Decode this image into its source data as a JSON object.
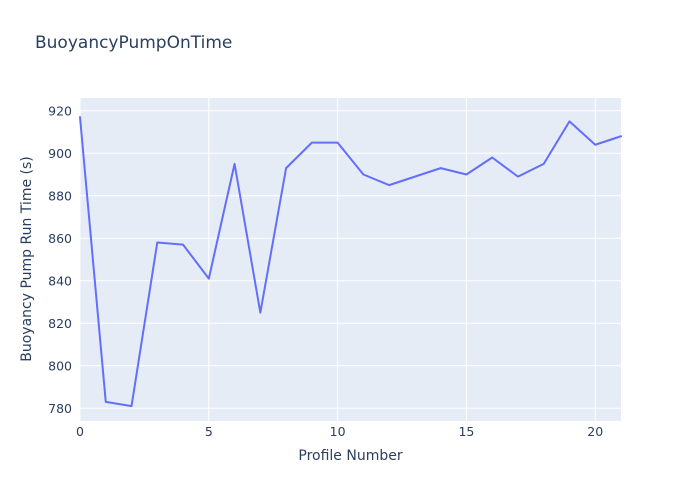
{
  "page": {
    "title": "BuoyancyPumpOnTime"
  },
  "chart_data": {
    "type": "line",
    "title": "BuoyancyPumpOnTime",
    "xlabel": "Profile Number",
    "ylabel": "Buoyancy Pump Run Time (s)",
    "x": [
      0,
      1,
      2,
      3,
      4,
      5,
      6,
      7,
      8,
      9,
      10,
      11,
      12,
      13,
      14,
      15,
      16,
      17,
      18,
      19,
      20,
      21
    ],
    "y": [
      917,
      783,
      781,
      858,
      857,
      841,
      895,
      825,
      893,
      905,
      905,
      890,
      885,
      889,
      893,
      890,
      898,
      889,
      895,
      915,
      904,
      908
    ],
    "x_ticks": [
      0,
      5,
      10,
      15,
      20
    ],
    "y_ticks": [
      780,
      800,
      820,
      840,
      860,
      880,
      900,
      920
    ],
    "x_range": [
      0,
      21
    ],
    "y_range": [
      774,
      926
    ],
    "grid": true,
    "legend_position": "none",
    "colors": {
      "line": "#636efa",
      "plot_bg": "#e5ecf6",
      "grid": "#ffffff",
      "text": "#2a3f5f",
      "paper_bg": "#ffffff"
    }
  }
}
